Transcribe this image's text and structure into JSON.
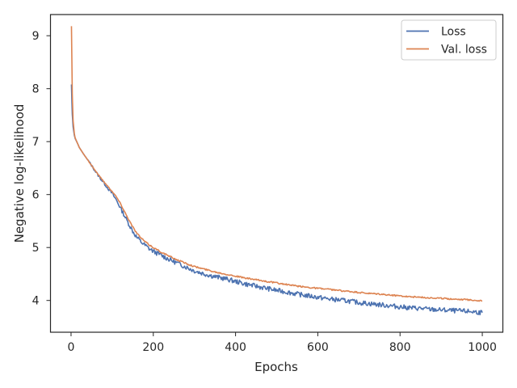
{
  "chart_data": {
    "type": "line",
    "xlabel": "Epochs",
    "ylabel": "Negative log-likelihood",
    "xlim": [
      -50,
      1050
    ],
    "ylim": [
      3.4,
      9.4
    ],
    "xticks": [
      0,
      200,
      400,
      600,
      800,
      1000
    ],
    "yticks": [
      4,
      5,
      6,
      7,
      8,
      9
    ],
    "grid": false,
    "legend_position": "top-right",
    "series": [
      {
        "name": "Loss",
        "color": "#4c72b0",
        "x": [
          1,
          2,
          3,
          5,
          8,
          10,
          15,
          20,
          30,
          40,
          50,
          60,
          70,
          80,
          90,
          100,
          110,
          120,
          130,
          140,
          150,
          160,
          170,
          180,
          190,
          200,
          220,
          240,
          260,
          280,
          300,
          325,
          350,
          375,
          400,
          425,
          450,
          475,
          500,
          525,
          550,
          575,
          600,
          625,
          650,
          675,
          700,
          725,
          750,
          775,
          800,
          825,
          850,
          875,
          900,
          925,
          950,
          975,
          1000
        ],
        "y": [
          8.08,
          7.78,
          7.52,
          7.28,
          7.12,
          7.06,
          6.98,
          6.89,
          6.77,
          6.66,
          6.55,
          6.43,
          6.32,
          6.22,
          6.12,
          6.02,
          5.9,
          5.75,
          5.6,
          5.45,
          5.31,
          5.19,
          5.11,
          5.04,
          4.98,
          4.93,
          4.85,
          4.77,
          4.7,
          4.63,
          4.56,
          4.5,
          4.45,
          4.41,
          4.36,
          4.31,
          4.27,
          4.23,
          4.19,
          4.16,
          4.12,
          4.09,
          4.06,
          4.03,
          4.01,
          3.99,
          3.96,
          3.94,
          3.92,
          3.9,
          3.88,
          3.86,
          3.85,
          3.83,
          3.82,
          3.81,
          3.8,
          3.79,
          3.77
        ]
      },
      {
        "name": "Val. loss",
        "color": "#dd8452",
        "x": [
          1,
          2,
          3,
          5,
          8,
          10,
          15,
          20,
          30,
          40,
          50,
          60,
          70,
          80,
          90,
          100,
          110,
          120,
          130,
          140,
          150,
          160,
          170,
          180,
          190,
          200,
          220,
          240,
          260,
          280,
          300,
          325,
          350,
          375,
          400,
          425,
          450,
          475,
          500,
          525,
          550,
          575,
          600,
          625,
          650,
          675,
          700,
          725,
          750,
          775,
          800,
          825,
          850,
          875,
          900,
          925,
          950,
          975,
          1000
        ],
        "y": [
          9.18,
          8.55,
          7.9,
          7.4,
          7.15,
          7.07,
          6.98,
          6.89,
          6.77,
          6.66,
          6.55,
          6.44,
          6.34,
          6.24,
          6.15,
          6.06,
          5.96,
          5.83,
          5.68,
          5.53,
          5.39,
          5.27,
          5.18,
          5.11,
          5.05,
          5.0,
          4.91,
          4.83,
          4.76,
          4.7,
          4.64,
          4.59,
          4.54,
          4.5,
          4.46,
          4.42,
          4.39,
          4.36,
          4.33,
          4.3,
          4.27,
          4.25,
          4.23,
          4.21,
          4.19,
          4.17,
          4.15,
          4.13,
          4.12,
          4.1,
          4.09,
          4.07,
          4.06,
          4.05,
          4.04,
          4.03,
          4.02,
          4.01,
          3.99
        ]
      }
    ]
  }
}
